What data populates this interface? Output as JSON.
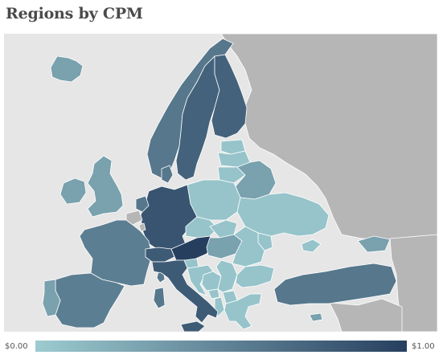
{
  "title": "Regions by CPM",
  "legend": {
    "min_label": "$0.00",
    "max_label": "$1.00",
    "color_low": "#9ccbd0",
    "color_high": "#273f5f"
  },
  "colors": {
    "ocean": "#e6e6e6",
    "no_data": "#b6b6b6",
    "border": "#ffffff"
  },
  "regions": [
    {
      "id": "iceland",
      "value": 0.3
    },
    {
      "id": "norway",
      "value": 0.6
    },
    {
      "id": "sweden",
      "value": 0.75
    },
    {
      "id": "finland",
      "value": 0.75
    },
    {
      "id": "ireland",
      "value": 0.3
    },
    {
      "id": "united-kingdom",
      "value": 0.3
    },
    {
      "id": "denmark",
      "value": 0.6
    },
    {
      "id": "estonia",
      "value": 0.05
    },
    {
      "id": "latvia",
      "value": 0.05
    },
    {
      "id": "lithuania",
      "value": 0.05
    },
    {
      "id": "belarus",
      "value": 0.3
    },
    {
      "id": "poland",
      "value": 0.05
    },
    {
      "id": "ukraine",
      "value": 0.05
    },
    {
      "id": "germany",
      "value": 0.85
    },
    {
      "id": "netherlands",
      "value": 0.6
    },
    {
      "id": "belgium",
      "value": 0.0
    },
    {
      "id": "luxembourg",
      "value": 0.0
    },
    {
      "id": "france",
      "value": 0.55
    },
    {
      "id": "switzerland",
      "value": 0.8
    },
    {
      "id": "austria",
      "value": 1.0
    },
    {
      "id": "czech-republic",
      "value": 0.05
    },
    {
      "id": "slovakia",
      "value": 0.05
    },
    {
      "id": "hungary",
      "value": 0.3
    },
    {
      "id": "slovenia",
      "value": 0.05
    },
    {
      "id": "croatia",
      "value": 0.05
    },
    {
      "id": "bosnia",
      "value": 0.05
    },
    {
      "id": "serbia",
      "value": 0.05
    },
    {
      "id": "montenegro",
      "value": 0.05
    },
    {
      "id": "albania",
      "value": 0.05
    },
    {
      "id": "macedonia",
      "value": 0.05
    },
    {
      "id": "romania",
      "value": 0.05
    },
    {
      "id": "moldova",
      "value": 0.05
    },
    {
      "id": "bulgaria",
      "value": 0.05
    },
    {
      "id": "greece",
      "value": 0.05
    },
    {
      "id": "italy",
      "value": 0.8
    },
    {
      "id": "sardinia",
      "value": 0.6
    },
    {
      "id": "corsica",
      "value": 0.6
    },
    {
      "id": "sicily",
      "value": 0.8
    },
    {
      "id": "spain",
      "value": 0.55
    },
    {
      "id": "portugal",
      "value": 0.3
    },
    {
      "id": "turkey",
      "value": 0.6
    },
    {
      "id": "georgia",
      "value": 0.3
    },
    {
      "id": "cyprus",
      "value": 0.3
    },
    {
      "id": "crimea",
      "value": 0.05
    }
  ]
}
